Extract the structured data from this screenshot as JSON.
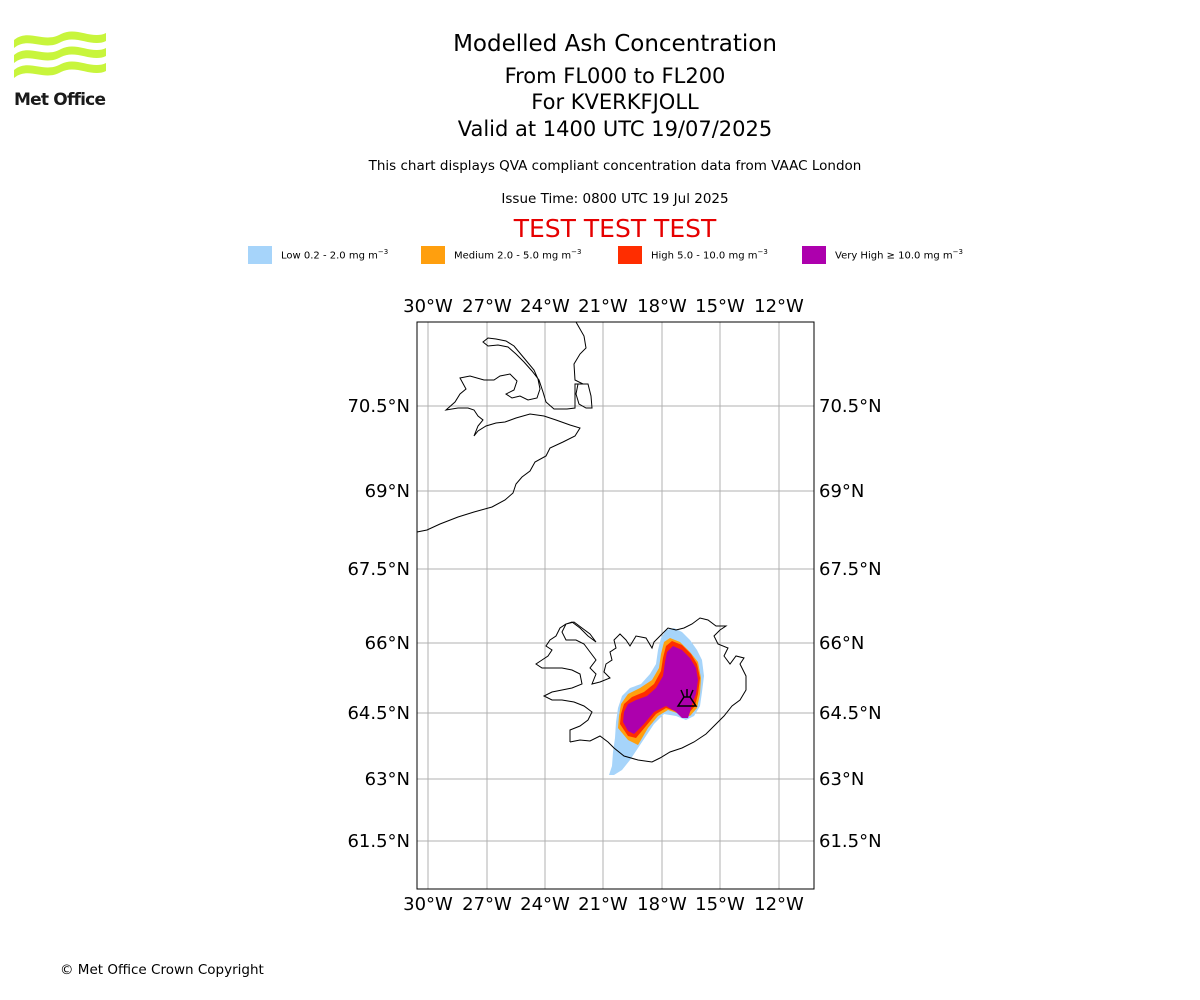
{
  "brand": {
    "name": "Met Office",
    "logo_color": "#c8f53c"
  },
  "header": {
    "title": "Modelled Ash Concentration",
    "levels": "From FL000 to FL200",
    "volcano": "For KVERKFJOLL",
    "valid": "Valid at 1400 UTC 19/07/2025",
    "description": "This chart displays QVA compliant concentration data from VAAC London",
    "issue_time": "Issue Time: 0800 UTC 19 Jul 2025",
    "test_banner": "TEST TEST TEST"
  },
  "legend": [
    {
      "label": "Low 0.2 - 2.0 mg m",
      "color": "#a6d4fa"
    },
    {
      "label": "Medium 2.0 - 5.0 mg m",
      "color": "#ff9f0e"
    },
    {
      "label": "High 5.0 - 10.0 mg m",
      "color": "#ff2d00"
    },
    {
      "label": "Very High ≥ 10.0 mg m",
      "color": "#ad00ad"
    }
  ],
  "legend_unit_exponent": "−3",
  "map": {
    "lon_labels": [
      "30°W",
      "27°W",
      "24°W",
      "21°W",
      "18°W",
      "15°W",
      "12°W"
    ],
    "lat_labels": [
      "70.5°N",
      "69°N",
      "67.5°N",
      "66°N",
      "64.5°N",
      "63°N",
      "61.5°N"
    ],
    "gridlines": true,
    "volcano_marker": "volcano-icon"
  },
  "footer": {
    "copyright": "© Met Office Crown Copyright"
  }
}
